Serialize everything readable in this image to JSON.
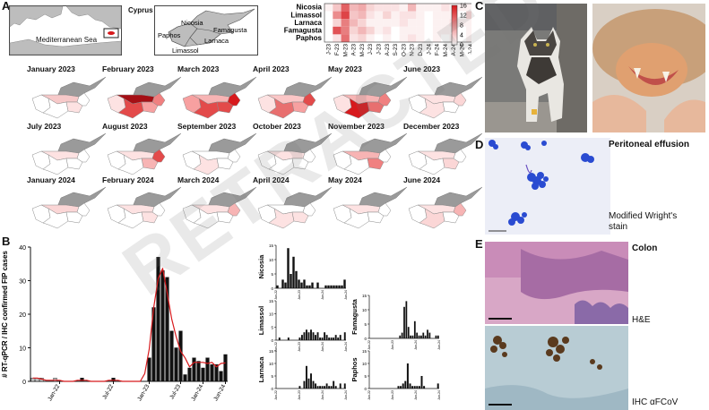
{
  "panel_letters": [
    "A",
    "B",
    "C",
    "D",
    "E"
  ],
  "map_inset": {
    "country": "Cyprus",
    "sea": "Mediterranean Sea",
    "cities": [
      "Nicosia",
      "Paphos",
      "Limassol",
      "Larnaca",
      "Famagusta"
    ]
  },
  "heatmap": {
    "rows": [
      "Nicosia",
      "Limassol",
      "Larnaca",
      "Famagusta",
      "Paphos"
    ],
    "cols": [
      "J-23",
      "F-23",
      "M-23",
      "A-23",
      "M-23",
      "J-23",
      "J-23",
      "A-23",
      "S-23",
      "O-23",
      "N-23",
      "D-23",
      "J-24",
      "F-24",
      "M-24",
      "A-24",
      "M-24",
      "J-24"
    ],
    "values": [
      [
        1,
        4,
        11,
        5,
        6,
        3,
        2,
        2,
        2,
        1,
        5,
        1,
        1,
        1,
        2,
        1,
        1,
        1
      ],
      [
        0,
        8,
        13,
        4,
        5,
        2,
        1,
        3,
        1,
        2,
        2,
        1,
        0,
        1,
        1,
        1,
        0,
        3
      ],
      [
        0,
        3,
        9,
        5,
        3,
        1,
        1,
        1,
        1,
        2,
        1,
        1,
        0,
        1,
        1,
        2,
        1,
        1
      ],
      [
        0,
        12,
        9,
        3,
        5,
        3,
        1,
        2,
        0,
        1,
        1,
        1,
        0,
        1,
        1,
        1,
        0,
        1
      ],
      [
        0,
        2,
        10,
        2,
        3,
        1,
        0,
        1,
        0,
        1,
        2,
        1,
        0,
        1,
        0,
        1,
        0,
        1
      ]
    ],
    "colorbar_ticks": [
      "16",
      "12",
      "8",
      "4",
      "0"
    ],
    "colors": {
      "low": "#ffffff",
      "high": "#d7191c"
    }
  },
  "maps": [
    {
      "label": "January 2023",
      "fill": [
        "#f7c9c9",
        "#ffffff",
        "#fde2e2",
        "#ffffff",
        "#ffffff"
      ]
    },
    {
      "label": "February 2023",
      "fill": [
        "#a50f15",
        "#e34a4a",
        "#f7a0a0",
        "#f08080",
        "#fde2e2"
      ]
    },
    {
      "label": "March 2023",
      "fill": [
        "#f7b4b4",
        "#e34a4a",
        "#e34a4a",
        "#d7191c",
        "#f7a0a0"
      ]
    },
    {
      "label": "April 2023",
      "fill": [
        "#fbc6c6",
        "#e86f6f",
        "#f7a0a0",
        "#e34a4a",
        "#fde2e2"
      ]
    },
    {
      "label": "May 2023",
      "fill": [
        "#f7b4b4",
        "#d7191c",
        "#e86f6f",
        "#f08080",
        "#fde2e2"
      ]
    },
    {
      "label": "June 2023",
      "fill": [
        "#fde2e2",
        "#fde2e2",
        "#ffffff",
        "#fbd6d6",
        "#ffffff"
      ]
    },
    {
      "label": "July 2023",
      "fill": [
        "#fde2e2",
        "#ffffff",
        "#ffffff",
        "#ffffff",
        "#ffffff"
      ]
    },
    {
      "label": "August 2023",
      "fill": [
        "#fde2e2",
        "#ffffff",
        "#f7b4b4",
        "#e34a4a",
        "#ffffff"
      ]
    },
    {
      "label": "September 2023",
      "fill": [
        "#ffffff",
        "#fde2e2",
        "#ffffff",
        "#ffffff",
        "#ffffff"
      ]
    },
    {
      "label": "October 2023",
      "fill": [
        "#fde2e2",
        "#ffffff",
        "#ffffff",
        "#ffffff",
        "#ffffff"
      ]
    },
    {
      "label": "November 2023",
      "fill": [
        "#f7b4b4",
        "#ffffff",
        "#f08080",
        "#ffffff",
        "#ffffff"
      ]
    },
    {
      "label": "December 2023",
      "fill": [
        "#fde2e2",
        "#ffffff",
        "#fbd6d6",
        "#ffffff",
        "#ffffff"
      ]
    },
    {
      "label": "January 2024",
      "fill": [
        "#fbd6d6",
        "#ffffff",
        "#ffffff",
        "#ffffff",
        "#ffffff"
      ]
    },
    {
      "label": "February 2024",
      "fill": [
        "#fde2e2",
        "#ffffff",
        "#fde2e2",
        "#ffffff",
        "#ffffff"
      ]
    },
    {
      "label": "March 2024",
      "fill": [
        "#fde2e2",
        "#ffffff",
        "#ffffff",
        "#f7b4b4",
        "#ffffff"
      ]
    },
    {
      "label": "April 2024",
      "fill": [
        "#ffffff",
        "#fde2e2",
        "#fde2e2",
        "#ffffff",
        "#ffffff"
      ]
    },
    {
      "label": "May 2024",
      "fill": [
        "#fde2e2",
        "#ffffff",
        "#ffffff",
        "#ffffff",
        "#ffffff"
      ]
    },
    {
      "label": "June 2024",
      "fill": [
        "#fde2e2",
        "#fbd6d6",
        "#ffffff",
        "#f7b4b4",
        "#ffffff"
      ]
    }
  ],
  "chart_data": [
    {
      "type": "bar",
      "ylabel": "# RT-qPCR / IHC confirmed FIP cases",
      "ylim": [
        0,
        40
      ],
      "yticks": [
        0,
        10,
        20,
        30,
        40
      ],
      "xticks": [
        "Jan-22",
        "Jul-22",
        "Jan-23",
        "Jul-23",
        "Jan-24",
        "Jun-24"
      ],
      "values": [
        1,
        1,
        1,
        0,
        0,
        1,
        0,
        0,
        0,
        0,
        0,
        1,
        0,
        0,
        0,
        0,
        0,
        0,
        1,
        0,
        0,
        0,
        0,
        0,
        0,
        0,
        7,
        22,
        37,
        33,
        31,
        15,
        10,
        15,
        2,
        4,
        7,
        6,
        4,
        7,
        5,
        5,
        3,
        8
      ],
      "highlight_count": 6,
      "trend_color": "#d7191c"
    },
    {
      "type": "bar",
      "name": "Nicosia",
      "ylim": [
        0,
        15
      ],
      "yticks": [
        0,
        5,
        10,
        15
      ],
      "values": [
        1,
        0,
        3,
        2,
        14,
        5,
        11,
        6,
        3,
        2,
        3,
        1,
        1,
        2,
        0,
        2,
        0,
        0,
        1,
        1,
        1,
        1,
        1,
        1,
        1,
        3
      ],
      "xticks": [
        "Jan-22",
        "Jan-23",
        "Jan-24",
        "Jun-24"
      ]
    },
    {
      "type": "bar",
      "name": "Famagusta",
      "ylim": [
        0,
        15
      ],
      "yticks": [
        0,
        5,
        10,
        15
      ],
      "values": [
        0,
        0,
        0,
        0,
        0,
        0,
        0,
        0,
        0,
        0,
        0,
        0,
        0,
        0,
        1,
        2,
        11,
        13,
        4,
        1,
        1,
        6,
        2,
        1,
        1,
        2,
        1,
        3,
        2,
        0,
        0,
        1,
        1
      ],
      "xticks": [
        "Jan-22",
        "Jan-23",
        "Jan-24",
        "Jun-24"
      ]
    },
    {
      "type": "bar",
      "name": "Limassol",
      "ylim": [
        0,
        15
      ],
      "yticks": [
        0,
        5,
        10,
        15
      ],
      "values": [
        0,
        1,
        0,
        0,
        0,
        1,
        0,
        0,
        0,
        0,
        1,
        2,
        3,
        4,
        3,
        4,
        3,
        2,
        3,
        1,
        1,
        3,
        2,
        1,
        1,
        1,
        2,
        1,
        2,
        0,
        3
      ],
      "xticks": [
        "Jan-22",
        "Jan-23",
        "Jan-24",
        "Jun-24"
      ]
    },
    {
      "type": "bar",
      "name": "Paphos",
      "ylim": [
        0,
        15
      ],
      "yticks": [
        0,
        5,
        10,
        15
      ],
      "values": [
        0,
        0,
        0,
        0,
        0,
        0,
        0,
        0,
        0,
        0,
        0,
        0,
        1,
        1,
        2,
        3,
        10,
        2,
        1,
        1,
        1,
        1,
        5,
        1,
        0,
        0,
        0,
        0,
        0,
        2
      ],
      "xticks": [
        "Jan-22",
        "Jan-23",
        "Jan-24",
        "Jun-24"
      ]
    },
    {
      "type": "bar",
      "name": "Larnaca",
      "ylim": [
        0,
        15
      ],
      "yticks": [
        0,
        5,
        10,
        15
      ],
      "values": [
        0,
        0,
        0,
        0,
        0,
        0,
        0,
        0,
        0,
        0,
        1,
        0,
        3,
        9,
        4,
        6,
        3,
        2,
        1,
        1,
        1,
        1,
        2,
        1,
        1,
        3,
        1,
        0,
        2,
        0,
        2
      ],
      "xticks": [
        "Jan-22",
        "Jan-23",
        "Jan-24",
        "Jun-24"
      ]
    }
  ],
  "panel_d": {
    "title": "Peritoneal effusion",
    "caption": "Modified Wright's stain"
  },
  "panel_e": {
    "title": "Colon",
    "caption_he": "H&E",
    "caption_ihc": "IHC αFCoV"
  },
  "watermark": "RETRACTED ARTICLE"
}
